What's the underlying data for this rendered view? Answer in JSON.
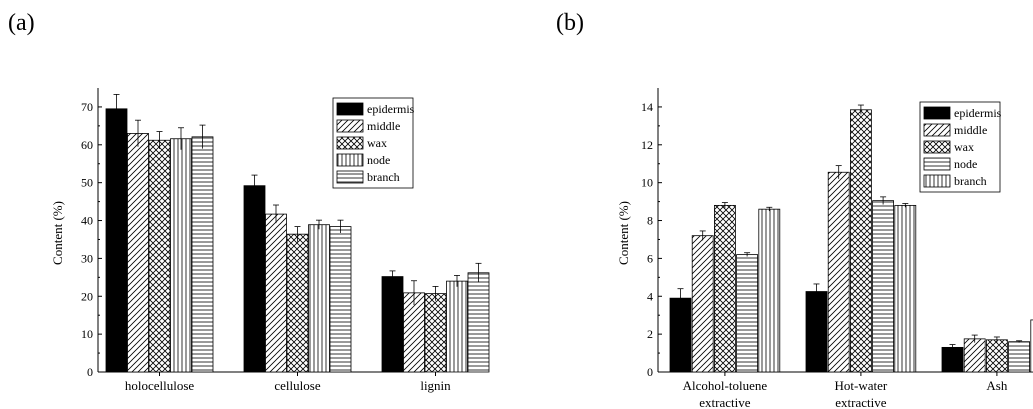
{
  "panels": [
    {
      "label": "(a)"
    },
    {
      "label": "(b)"
    }
  ],
  "chart_data": [
    {
      "type": "bar",
      "title": "",
      "xlabel": "",
      "ylabel": "Content (%)",
      "ylim": [
        0,
        75
      ],
      "yticks": [
        0,
        10,
        20,
        30,
        40,
        50,
        60,
        70
      ],
      "grid": false,
      "legend_position": "top-right",
      "categories": [
        [
          "holocellulose"
        ],
        [
          "cellulose"
        ],
        [
          "lignin"
        ]
      ],
      "series": [
        {
          "name": "epidermis",
          "pattern": "solid",
          "values": [
            69.5,
            49.2,
            25.2
          ],
          "errors": [
            3.8,
            2.8,
            1.5
          ]
        },
        {
          "name": "middle",
          "pattern": "diagonal",
          "values": [
            63.0,
            41.7,
            20.9
          ],
          "errors": [
            3.5,
            2.4,
            3.2
          ]
        },
        {
          "name": "wax",
          "pattern": "crosshatch",
          "values": [
            61.2,
            36.4,
            20.7
          ],
          "errors": [
            2.3,
            2.0,
            1.9
          ]
        },
        {
          "name": "node",
          "pattern": "vertical",
          "values": [
            61.6,
            38.9,
            24.0
          ],
          "errors": [
            2.9,
            1.2,
            1.5
          ]
        },
        {
          "name": "branch",
          "pattern": "horizontal",
          "values": [
            62.1,
            38.4,
            26.2
          ],
          "errors": [
            3.1,
            1.7,
            2.5
          ]
        }
      ]
    },
    {
      "type": "bar",
      "title": "",
      "xlabel": "",
      "ylabel": "Content (%)",
      "ylim": [
        0,
        15
      ],
      "yticks": [
        0,
        2,
        4,
        6,
        8,
        10,
        12,
        14
      ],
      "grid": false,
      "legend_position": "top-right",
      "categories": [
        [
          "Alcohol-toluene",
          "extractive"
        ],
        [
          "Hot-water",
          "extractive"
        ],
        [
          "Ash"
        ]
      ],
      "series": [
        {
          "name": "epidermis",
          "pattern": "solid",
          "values": [
            3.9,
            4.25,
            1.3
          ],
          "errors": [
            0.5,
            0.4,
            0.15
          ]
        },
        {
          "name": "middle",
          "pattern": "diagonal",
          "values": [
            7.2,
            10.55,
            1.75
          ],
          "errors": [
            0.25,
            0.35,
            0.2
          ]
        },
        {
          "name": "wax",
          "pattern": "crosshatch",
          "values": [
            8.8,
            13.85,
            1.7
          ],
          "errors": [
            0.15,
            0.25,
            0.15
          ]
        },
        {
          "name": "node",
          "pattern": "horizontal",
          "values": [
            6.2,
            9.05,
            1.6
          ],
          "errors": [
            0.1,
            0.2,
            0.05
          ]
        },
        {
          "name": "branch",
          "pattern": "vertical",
          "values": [
            8.6,
            8.8,
            2.75
          ],
          "errors": [
            0.1,
            0.1,
            0.1
          ]
        }
      ]
    }
  ]
}
